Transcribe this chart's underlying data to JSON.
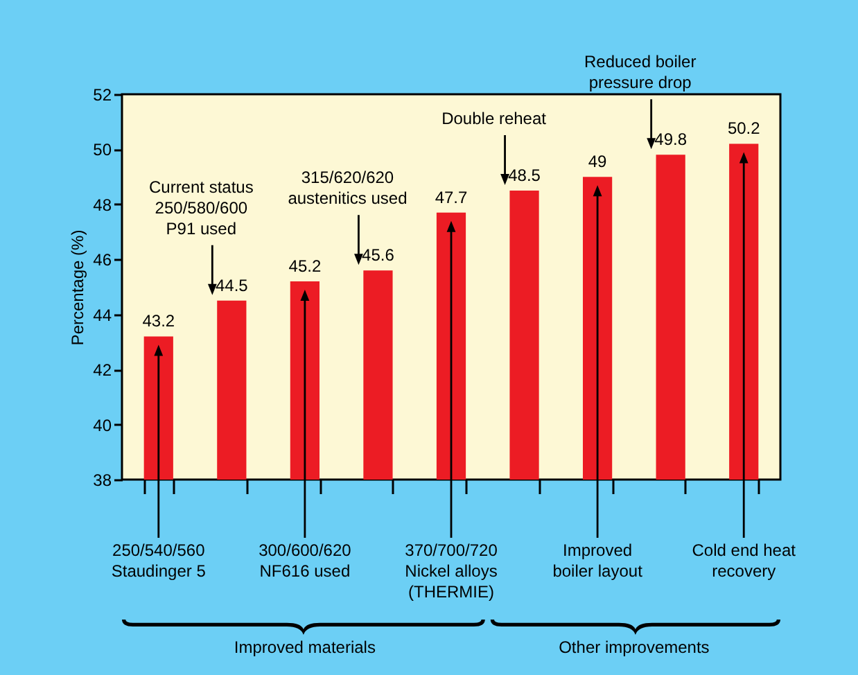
{
  "chart_data": {
    "type": "bar",
    "ylabel": "Percentage (%)",
    "categories": [
      "250/540/560\nStaudinger 5",
      "Current status\n250/580/600\nP91 used",
      "300/600/620\nNF616 used",
      "315/620/620\naustenitics used",
      "370/700/720\nNickel alloys\n(THERMIE)",
      "Double reheat",
      "Improved\nboiler layout",
      "Reduced boiler\npressure drop",
      "Cold end heat\nrecovery"
    ],
    "values": [
      43.2,
      44.5,
      45.2,
      45.6,
      47.7,
      48.5,
      49,
      49.8,
      50.2
    ],
    "color": "#ec1c24",
    "ylim": [
      38,
      52
    ],
    "yticks": [
      38,
      40,
      42,
      44,
      46,
      48,
      50,
      52
    ],
    "data_labels": true,
    "annotations": [
      "Improved materials",
      "Other improvements"
    ]
  }
}
